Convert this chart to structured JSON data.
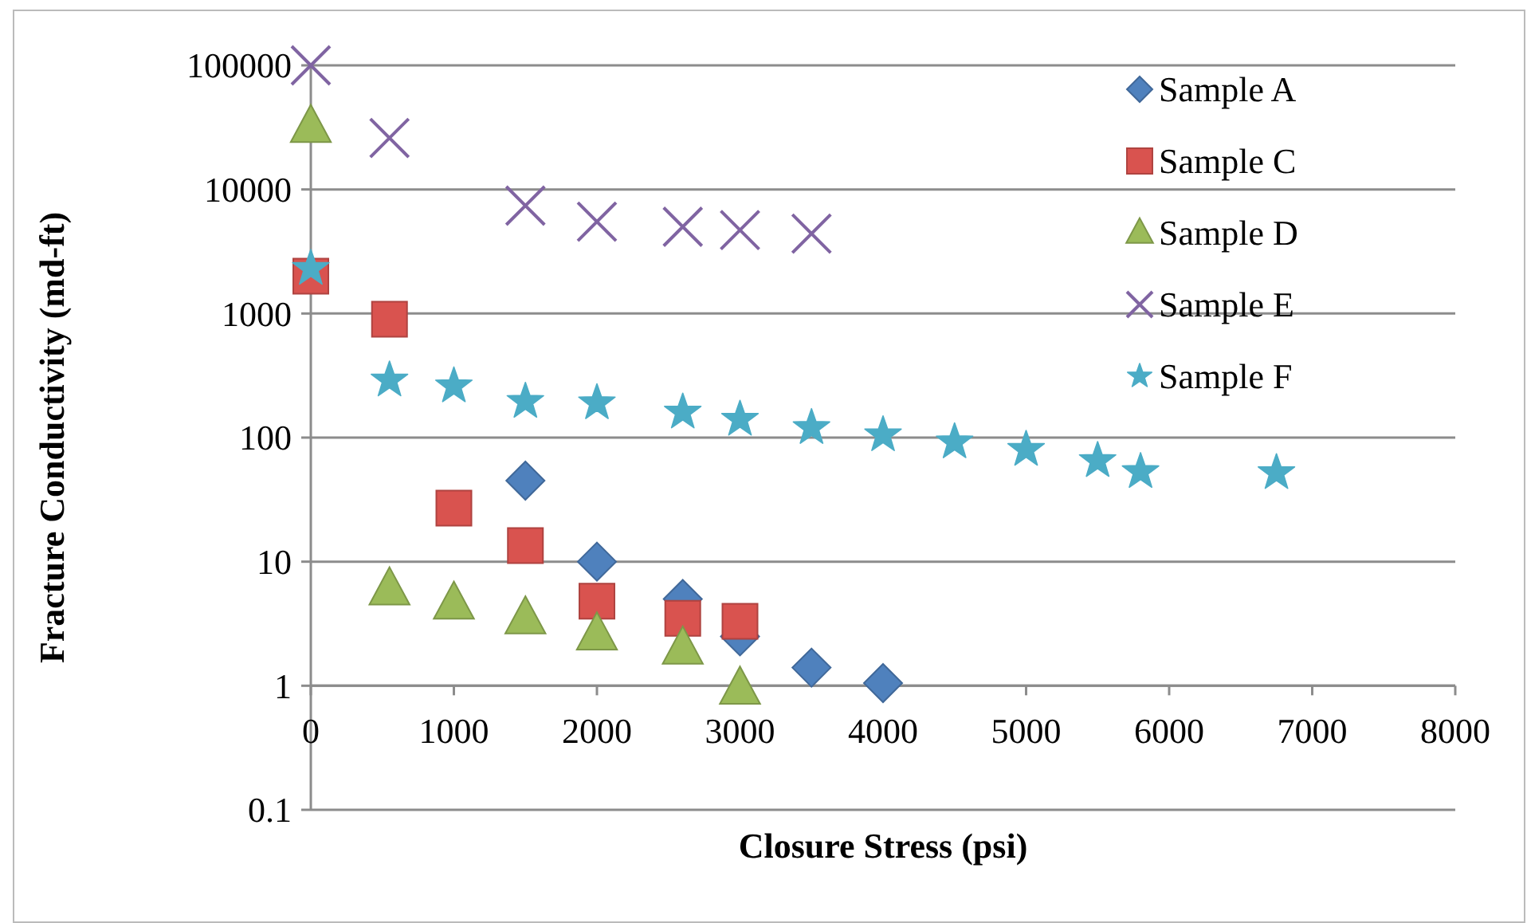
{
  "chart_data": {
    "type": "scatter",
    "xlabel": "Closure Stress (psi)",
    "ylabel": "Fracture Conductivity (md-ft)",
    "xlim": [
      0,
      8000
    ],
    "xticks": [
      0,
      1000,
      2000,
      3000,
      4000,
      5000,
      6000,
      7000,
      8000
    ],
    "ylim": [
      0.1,
      100000
    ],
    "yticks": [
      0.1,
      1,
      10,
      100,
      1000,
      10000,
      100000
    ],
    "log": "y",
    "grid": "y",
    "legend": "top right",
    "series": [
      {
        "name": "Sample A",
        "color": "#4f81bd",
        "marker": "diamond",
        "x": [
          1500,
          2000,
          2600,
          3000,
          3500,
          4000
        ],
        "values": [
          45,
          10,
          5,
          2.5,
          1.4,
          1.05
        ]
      },
      {
        "name": "Sample C",
        "color": "#d9534f",
        "marker": "square",
        "x": [
          0,
          550,
          1000,
          1500,
          2000,
          2600,
          3000
        ],
        "values": [
          2000,
          900,
          27,
          13.5,
          4.8,
          3.5,
          3.3
        ]
      },
      {
        "name": "Sample D",
        "color": "#9bbb59",
        "marker": "triangle",
        "x": [
          0,
          550,
          1000,
          1500,
          2000,
          2600,
          3000
        ],
        "values": [
          32000,
          6,
          4.6,
          3.5,
          2.6,
          2,
          0.95
        ]
      },
      {
        "name": "Sample E",
        "color": "#8064a2",
        "marker": "cross",
        "x": [
          0,
          550,
          1500,
          2000,
          2600,
          3000,
          3500
        ],
        "values": [
          100000,
          26000,
          7400,
          5500,
          5000,
          4700,
          4400
        ]
      },
      {
        "name": "Sample F",
        "color": "#4bacc6",
        "marker": "star",
        "x": [
          0,
          550,
          1000,
          1500,
          2000,
          2600,
          3000,
          3500,
          4000,
          4500,
          5000,
          5500,
          5800,
          6750
        ],
        "values": [
          2300,
          290,
          260,
          195,
          190,
          160,
          140,
          120,
          105,
          92,
          80,
          65,
          53,
          52
        ]
      }
    ]
  }
}
